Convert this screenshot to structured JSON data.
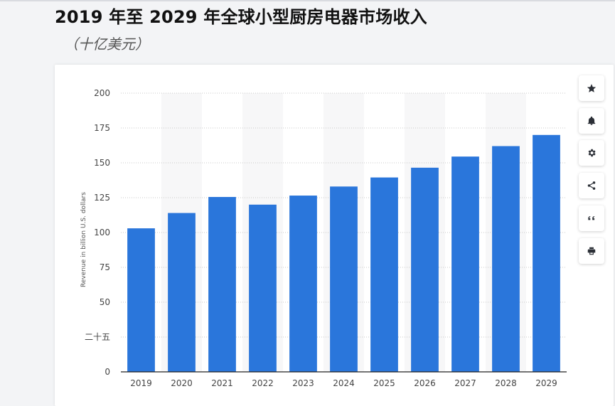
{
  "header": {
    "title": "2019 年至 2029 年全球小型厨房电器市场收入",
    "subtitle": "（十亿美元）"
  },
  "toolbar": {
    "buttons": [
      {
        "name": "favorite-button",
        "icon": "star-icon"
      },
      {
        "name": "notification-button",
        "icon": "bell-icon"
      },
      {
        "name": "settings-button",
        "icon": "gear-icon"
      },
      {
        "name": "share-button",
        "icon": "share-icon"
      },
      {
        "name": "cite-button",
        "icon": "quote-icon"
      },
      {
        "name": "print-button",
        "icon": "printer-icon"
      }
    ]
  },
  "chart_data": {
    "type": "bar",
    "categories": [
      "2019",
      "2020",
      "2021",
      "2022",
      "2023",
      "2024",
      "2025",
      "2026",
      "2027",
      "2028",
      "2029"
    ],
    "values": [
      103,
      114,
      125.5,
      120,
      126.5,
      133,
      139.5,
      146.5,
      154.5,
      162,
      170
    ],
    "ylabel": "Revenue in billion U.S. dollars",
    "ylim": [
      0,
      200
    ],
    "yticks": [
      {
        "value": 0,
        "label": "0"
      },
      {
        "value": 25,
        "label": "二十五"
      },
      {
        "value": 50,
        "label": "50"
      },
      {
        "value": 75,
        "label": "75"
      },
      {
        "value": 100,
        "label": "100"
      },
      {
        "value": 125,
        "label": "125"
      },
      {
        "value": 150,
        "label": "150"
      },
      {
        "value": 175,
        "label": "175"
      },
      {
        "value": 200,
        "label": "200"
      }
    ],
    "grid": true,
    "bar_color": "#2a76db"
  }
}
